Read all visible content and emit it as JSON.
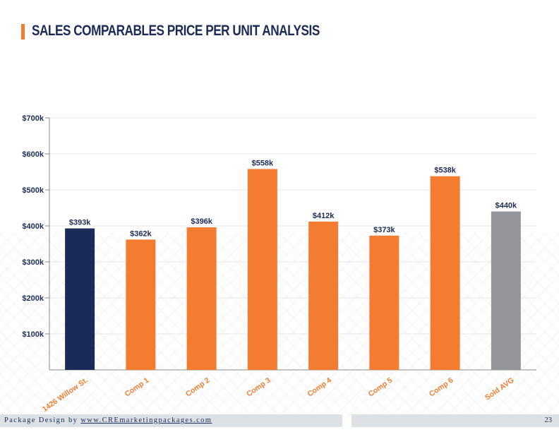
{
  "page": {
    "title": "SALES COMPARABLES PRICE PER UNIT ANALYSIS",
    "footer_prefix": "Package Design by ",
    "footer_link": "www.CREmarketingpackages.com",
    "page_number": "23"
  },
  "colors": {
    "accent": "#f47c30",
    "subject": "#1b2b57",
    "average": "#939598"
  },
  "chart_data": {
    "type": "bar",
    "title": "",
    "xlabel": "",
    "ylabel": "",
    "ylim": [
      0,
      700000
    ],
    "yticks": [
      100000,
      200000,
      300000,
      400000,
      500000,
      600000,
      700000
    ],
    "ytick_labels": [
      "$100k",
      "$200k",
      "$300k",
      "$400k",
      "$500k",
      "$600k",
      "$700k"
    ],
    "categories": [
      "1426 Willow St.",
      "Comp 1",
      "Comp 2",
      "Comp 3",
      "Comp 4",
      "Comp 5",
      "Comp 6",
      "Sold AVG"
    ],
    "values": [
      393000,
      362000,
      396000,
      558000,
      412000,
      373000,
      538000,
      440000
    ],
    "data_labels": [
      "$393k",
      "$362k",
      "$396k",
      "$558k",
      "$412k",
      "$373k",
      "$538k",
      "$440k"
    ],
    "bar_colors": [
      "#1b2b57",
      "#f47c30",
      "#f47c30",
      "#f47c30",
      "#f47c30",
      "#f47c30",
      "#f47c30",
      "#939598"
    ],
    "grid": true
  }
}
